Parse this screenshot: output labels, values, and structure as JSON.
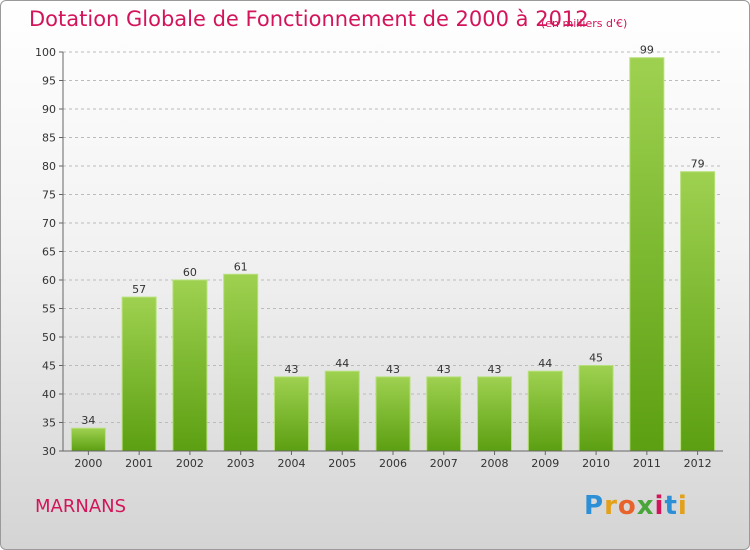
{
  "title": "Dotation Globale de Fonctionnement de 2000 à 2012",
  "subtitle": "(en milliers d'€)",
  "commune": "MARNANS",
  "logo": {
    "text": "Proxiti",
    "letter_colors": [
      "#2d8fd5",
      "#e3a019",
      "#e8622c",
      "#4aa53a",
      "#d4145a",
      "#2d8fd5",
      "#e3a019"
    ]
  },
  "colors": {
    "title": "#d4145a",
    "bar_top": "#9ed150",
    "bar_bottom": "#5c9f12",
    "grid": "#bbbbbb"
  },
  "chart_data": {
    "type": "bar",
    "categories": [
      "2000",
      "2001",
      "2002",
      "2003",
      "2004",
      "2005",
      "2006",
      "2007",
      "2008",
      "2009",
      "2010",
      "2011",
      "2012"
    ],
    "values": [
      34,
      57,
      60,
      61,
      43,
      44,
      43,
      43,
      43,
      44,
      45,
      99,
      79
    ],
    "ylim": [
      30,
      100
    ],
    "yticks": [
      30,
      35,
      40,
      45,
      50,
      55,
      60,
      65,
      70,
      75,
      80,
      85,
      90,
      95,
      100
    ],
    "grid": true,
    "data_labels": true
  }
}
